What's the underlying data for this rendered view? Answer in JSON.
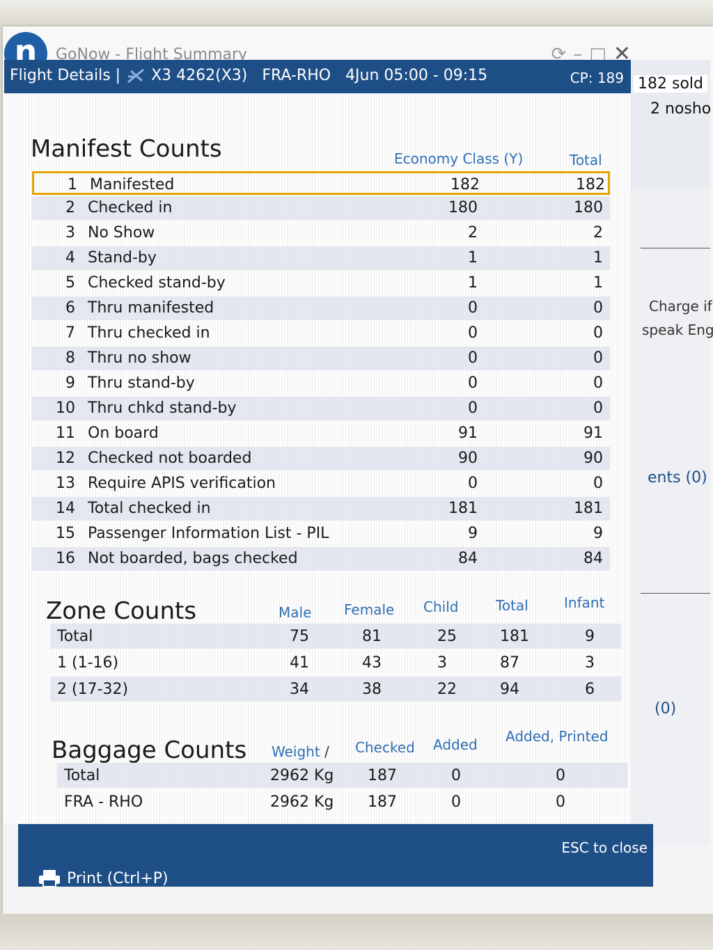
{
  "app": {
    "title": "GoNow - Flight Summary",
    "logo_letter": "n"
  },
  "window_controls": {
    "refresh": "⟳",
    "minimize": "–",
    "maximize": "□",
    "close": "✕"
  },
  "header": {
    "flight_details": "Flight Details |",
    "flight_number": "X3 4262(X3)",
    "route": "FRA-RHO",
    "date_time": "4Jun 05:00 - 09:15",
    "cp": "CP: 189"
  },
  "side": {
    "sold": "182 sold",
    "noshow": "2 nosho",
    "charge": "Charge if",
    "speak": "speak Eng",
    "comments": "ents (0)",
    "zero": "(0)"
  },
  "manifest": {
    "title": "Manifest Counts",
    "col_econ": "Economy Class (Y)",
    "col_total": "Total",
    "rows": [
      {
        "num": "1",
        "label": "Manifested",
        "econ": "182",
        "total": "182"
      },
      {
        "num": "2",
        "label": "Checked in",
        "econ": "180",
        "total": "180"
      },
      {
        "num": "3",
        "label": "No Show",
        "econ": "2",
        "total": "2"
      },
      {
        "num": "4",
        "label": "Stand-by",
        "econ": "1",
        "total": "1"
      },
      {
        "num": "5",
        "label": "Checked stand-by",
        "econ": "1",
        "total": "1"
      },
      {
        "num": "6",
        "label": "Thru manifested",
        "econ": "0",
        "total": "0"
      },
      {
        "num": "7",
        "label": "Thru checked in",
        "econ": "0",
        "total": "0"
      },
      {
        "num": "8",
        "label": "Thru no show",
        "econ": "0",
        "total": "0"
      },
      {
        "num": "9",
        "label": "Thru stand-by",
        "econ": "0",
        "total": "0"
      },
      {
        "num": "10",
        "label": "Thru chkd stand-by",
        "econ": "0",
        "total": "0"
      },
      {
        "num": "11",
        "label": "On board",
        "econ": "91",
        "total": "91"
      },
      {
        "num": "12",
        "label": "Checked not boarded",
        "econ": "90",
        "total": "90"
      },
      {
        "num": "13",
        "label": "Require APIS verification",
        "econ": "0",
        "total": "0"
      },
      {
        "num": "14",
        "label": "Total checked in",
        "econ": "181",
        "total": "181"
      },
      {
        "num": "15",
        "label": "Passenger Information List - PIL",
        "econ": "9",
        "total": "9"
      },
      {
        "num": "16",
        "label": "Not boarded, bags checked",
        "econ": "84",
        "total": "84"
      }
    ]
  },
  "zones": {
    "title": "Zone Counts",
    "headers": {
      "male": "Male",
      "female": "Female",
      "child": "Child",
      "total": "Total",
      "infant": "Infant"
    },
    "rows": [
      {
        "label": "Total",
        "male": "75",
        "female": "81",
        "child": "25",
        "total": "181",
        "infant": "9"
      },
      {
        "label": "1 (1-16)",
        "male": "41",
        "female": "43",
        "child": "3",
        "total": "87",
        "infant": "3"
      },
      {
        "label": "2 (17-32)",
        "male": "34",
        "female": "38",
        "child": "22",
        "total": "94",
        "infant": "6"
      }
    ]
  },
  "baggage": {
    "title": "Baggage Counts",
    "headers": {
      "weight": "Weight",
      "sep": "/",
      "checked": "Checked",
      "added": "Added",
      "added_printed": "Added, Printed"
    },
    "rows": [
      {
        "label": "Total",
        "weight": "2962 Kg",
        "checked": "187",
        "added": "0",
        "added_printed": "0"
      },
      {
        "label": "FRA - RHO",
        "weight": "2962 Kg",
        "checked": "187",
        "added": "0",
        "added_printed": "0"
      }
    ]
  },
  "footer": {
    "esc": "ESC to close",
    "print": "Print (Ctrl+P)"
  },
  "colors": {
    "header_blue": "#1e4e86",
    "logo_blue": "#1f5fa6",
    "column_blue": "#2f6fb5",
    "highlight": "#e5a500"
  }
}
